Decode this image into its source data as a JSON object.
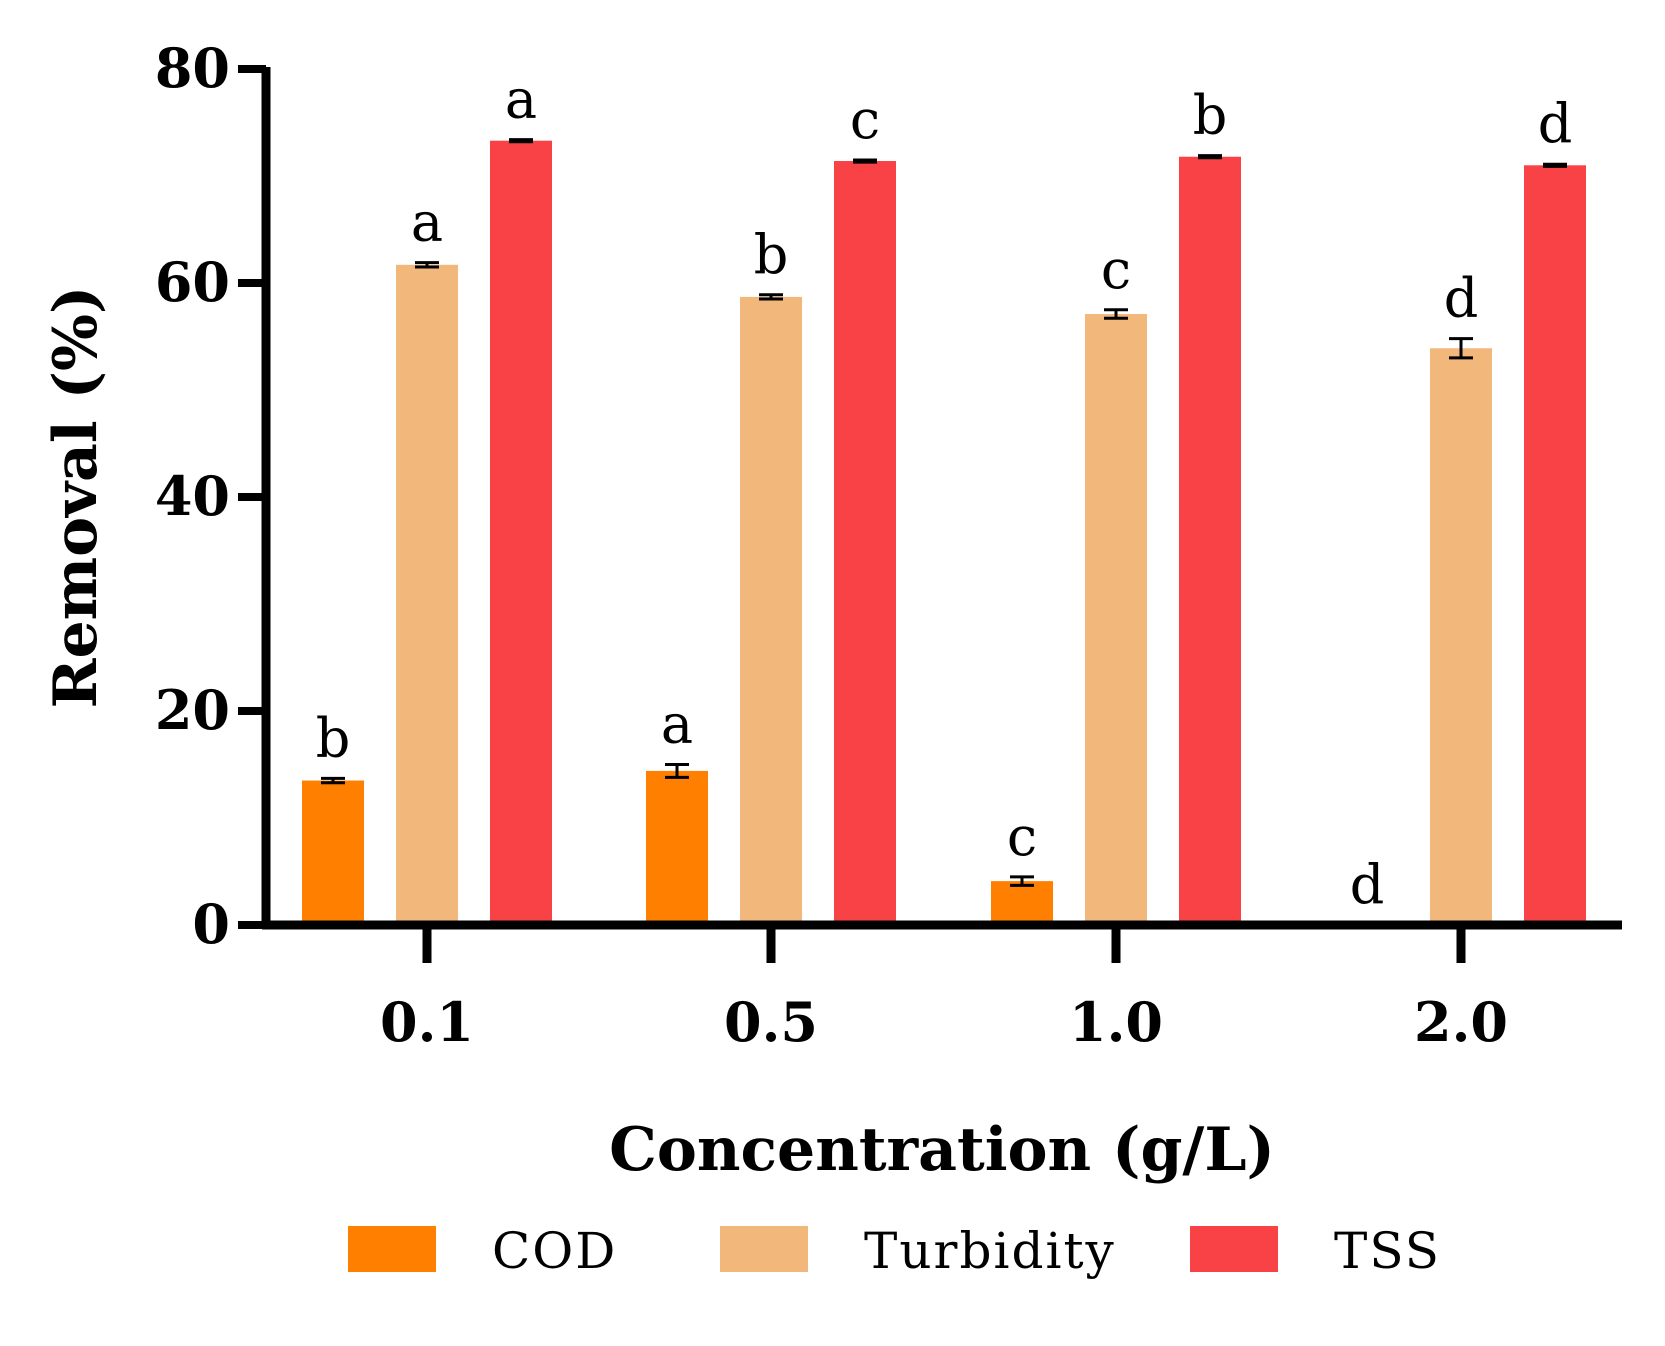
{
  "chart_data": {
    "type": "bar",
    "title": "",
    "xlabel": "Concentration (g/L)",
    "ylabel": "Removal (%)",
    "ylim": [
      0,
      80
    ],
    "yticks": [
      0,
      20,
      40,
      60,
      80
    ],
    "categories": [
      "0.1",
      "0.5",
      "1.0",
      "2.0"
    ],
    "legend_position": "bottom",
    "grid": false,
    "series": [
      {
        "name": "COD",
        "color": "#FF8000",
        "values": [
          13.5,
          14.4,
          4.1,
          0
        ],
        "errors": [
          0.2,
          0.6,
          0.4,
          0
        ],
        "labels": [
          "b",
          "a",
          "c",
          "d"
        ]
      },
      {
        "name": "Turbidity",
        "color": "#F2B77B",
        "values": [
          61.7,
          58.7,
          57.1,
          53.9
        ],
        "errors": [
          0.2,
          0.2,
          0.4,
          0.9
        ],
        "labels": [
          "a",
          "b",
          "c",
          "d"
        ]
      },
      {
        "name": "TSS",
        "color": "#F84246",
        "values": [
          73.3,
          71.4,
          71.8,
          71.0
        ],
        "errors": [
          0.1,
          0.1,
          0.1,
          0.1
        ],
        "labels": [
          "a",
          "c",
          "b",
          "d"
        ]
      }
    ]
  }
}
